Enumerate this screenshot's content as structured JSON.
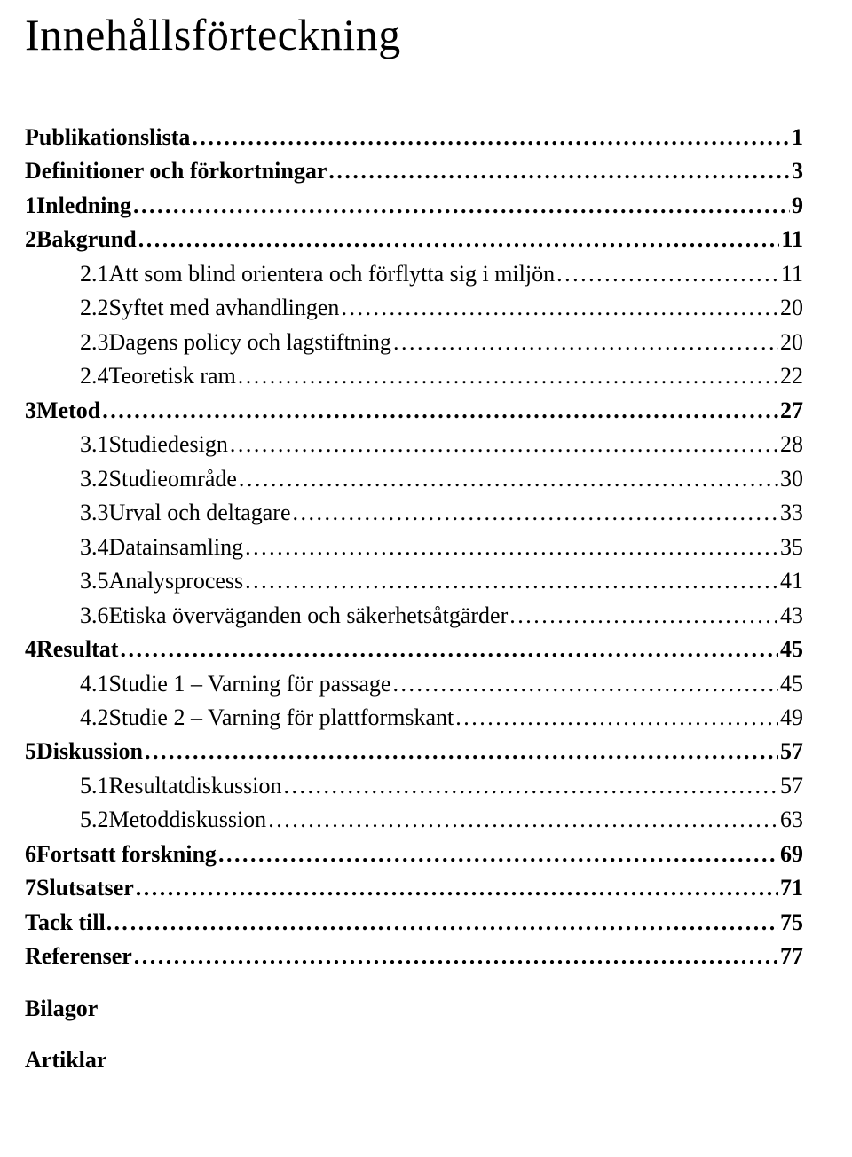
{
  "title": "Innehållsförteckning",
  "dot": ".",
  "toc": [
    {
      "level": 0,
      "num": "",
      "label": "Publikationslista",
      "page": "1",
      "bold": true
    },
    {
      "level": 0,
      "num": "",
      "label": "Definitioner och förkortningar",
      "page": "3",
      "bold": true
    },
    {
      "level": 0,
      "num": "1",
      "label": "Inledning",
      "page": "9",
      "bold": true
    },
    {
      "level": 0,
      "num": "2",
      "label": "Bakgrund",
      "page": "11",
      "bold": true
    },
    {
      "level": 1,
      "num": "2.1",
      "label": "Att som blind orientera och förflytta sig i miljön",
      "page": "11"
    },
    {
      "level": 1,
      "num": "2.2",
      "label": "Syftet med avhandlingen",
      "page": "20"
    },
    {
      "level": 1,
      "num": "2.3",
      "label": "Dagens policy och lagstiftning",
      "page": "20"
    },
    {
      "level": 1,
      "num": "2.4",
      "label": "Teoretisk ram",
      "page": "22"
    },
    {
      "level": 0,
      "num": "3",
      "label": "Metod",
      "page": "27",
      "bold": true
    },
    {
      "level": 1,
      "num": "3.1",
      "label": "Studiedesign",
      "page": "28"
    },
    {
      "level": 1,
      "num": "3.2",
      "label": "Studieområde",
      "page": "30"
    },
    {
      "level": 1,
      "num": "3.3",
      "label": "Urval och deltagare",
      "page": "33"
    },
    {
      "level": 1,
      "num": "3.4",
      "label": "Datainsamling",
      "page": "35"
    },
    {
      "level": 1,
      "num": "3.5",
      "label": "Analysprocess",
      "page": "41"
    },
    {
      "level": 1,
      "num": "3.6",
      "label": "Etiska överväganden och säkerhetsåtgärder",
      "page": "43"
    },
    {
      "level": 0,
      "num": "4",
      "label": "Resultat",
      "page": "45",
      "bold": true
    },
    {
      "level": 1,
      "num": "4.1",
      "label": "Studie 1 – Varning för passage",
      "page": "45"
    },
    {
      "level": 1,
      "num": "4.2",
      "label": "Studie 2 – Varning för plattformskant",
      "page": "49"
    },
    {
      "level": 0,
      "num": "5",
      "label": "Diskussion",
      "page": "57",
      "bold": true
    },
    {
      "level": 1,
      "num": "5.1",
      "label": "Resultatdiskussion",
      "page": "57"
    },
    {
      "level": 1,
      "num": "5.2",
      "label": "Metoddiskussion",
      "page": "63"
    },
    {
      "level": 0,
      "num": "6",
      "label": "Fortsatt forskning",
      "page": "69",
      "bold": true
    },
    {
      "level": 0,
      "num": "7",
      "label": "Slutsatser",
      "page": "71",
      "bold": true
    },
    {
      "level": 0,
      "num": "",
      "label": "Tack till…",
      "page": "75",
      "bold": true
    },
    {
      "level": 0,
      "num": "",
      "label": "Referenser",
      "page": "77",
      "bold": true
    },
    {
      "level": 0,
      "num": "",
      "label": "Bilagor",
      "page": "",
      "bold": true,
      "no_leader": true,
      "gap_before": 20
    },
    {
      "level": 0,
      "num": "",
      "label": "Artiklar",
      "page": "",
      "bold": true,
      "no_leader": true,
      "gap_before": 20
    }
  ]
}
